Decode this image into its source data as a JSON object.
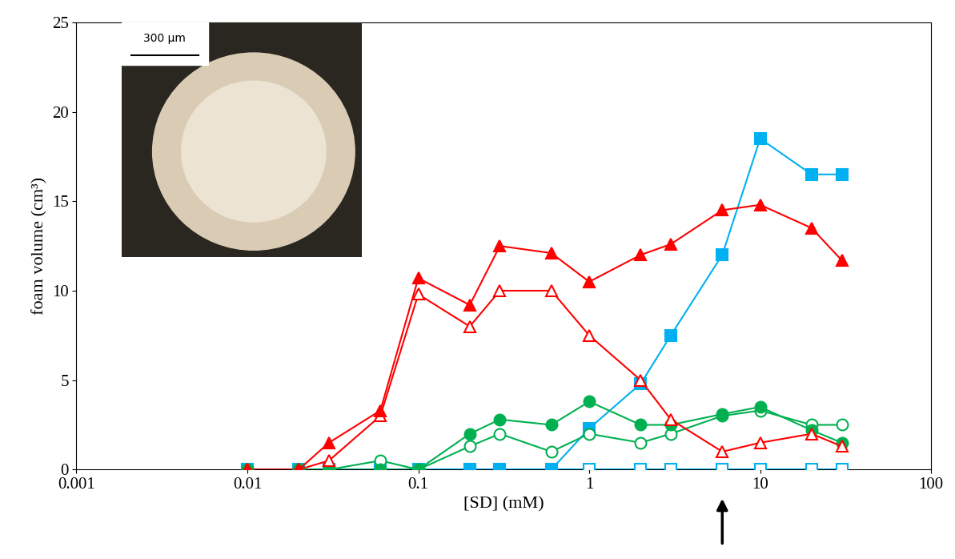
{
  "chart_data": {
    "type": "line",
    "x_label": "[SD] (mM)",
    "y_label": "foam volume (cm³)",
    "annotations": [
      "300 µm"
    ],
    "arrow_at": 6,
    "log": "x",
    "xlim": [
      0.001,
      100
    ],
    "xticks": [
      0.001,
      0.01,
      0.1,
      1,
      10,
      100
    ],
    "ylim": [
      0,
      25
    ],
    "yticks": [
      0,
      5,
      10,
      15,
      20,
      25
    ],
    "x": [
      0.01,
      0.02,
      0.03,
      0.06,
      0.1,
      0.2,
      0.3,
      0.6,
      1,
      2,
      3,
      6,
      10,
      20,
      30
    ],
    "series": [
      {
        "color": "#00b0f0",
        "marker": "square-open",
        "values": [
          0,
          0,
          0,
          0,
          0,
          0,
          0,
          0,
          0,
          0,
          0,
          0,
          0,
          0,
          0
        ]
      },
      {
        "color": "#00b0f0",
        "marker": "square-filled",
        "values": [
          0,
          0,
          0,
          0,
          0,
          0,
          0,
          0,
          2.3,
          4.8,
          7.5,
          12,
          18.5,
          16.5,
          16.5
        ]
      },
      {
        "color": "#00b050",
        "marker": "circle-open",
        "values": [
          0,
          0,
          0,
          0.5,
          0,
          1.3,
          2,
          1,
          2,
          1.5,
          2,
          3,
          3.3,
          2.5,
          2.5
        ]
      },
      {
        "color": "#00b050",
        "marker": "circle-filled",
        "values": [
          0,
          0,
          0,
          0,
          0,
          2,
          2.8,
          2.5,
          3.8,
          2.5,
          2.5,
          3.1,
          3.5,
          2.2,
          1.5
        ]
      },
      {
        "color": "#ff0000",
        "marker": "triangle-open",
        "values": [
          0,
          0,
          0.5,
          3,
          9.8,
          8,
          10,
          10,
          7.5,
          5,
          2.8,
          1,
          1.5,
          2,
          1.3
        ]
      },
      {
        "color": "#ff0000",
        "marker": "triangle-filled",
        "values": [
          0,
          0,
          1.5,
          3.3,
          10.7,
          9.2,
          12.5,
          12.1,
          10.5,
          12,
          12.6,
          14.5,
          14.8,
          13.5,
          11.7
        ]
      }
    ]
  }
}
